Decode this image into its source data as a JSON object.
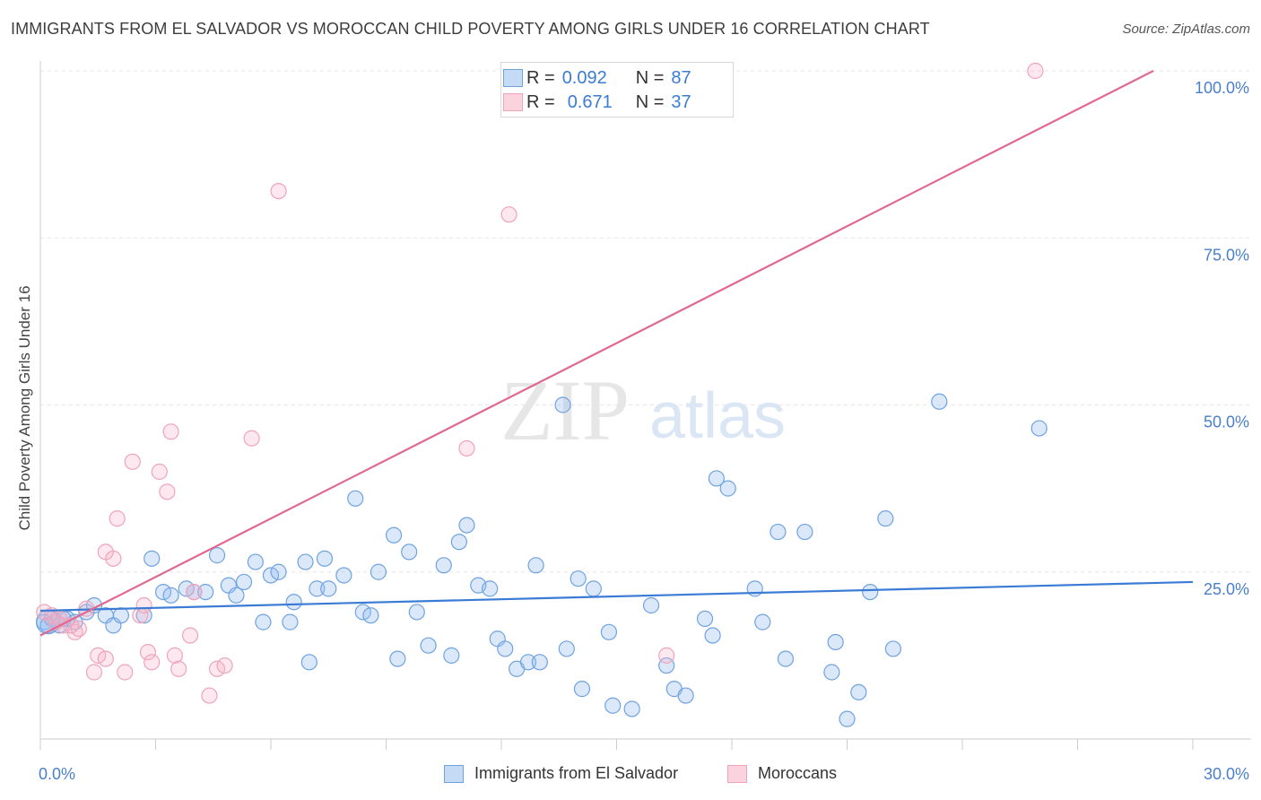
{
  "title": "IMMIGRANTS FROM EL SALVADOR VS MOROCCAN CHILD POVERTY AMONG GIRLS UNDER 16 CORRELATION CHART",
  "source": "Source: ZipAtlas.com",
  "watermark": {
    "zip": "ZIP",
    "atlas": "atlas"
  },
  "colors": {
    "blue": "#6fa3e0",
    "blue_line": "#3a7bd5",
    "pink": "#f0a3bb",
    "pink_line": "#e0698f",
    "axis_text": "#4a7fcc"
  },
  "legend_top": [
    {
      "r_label": "R =",
      "r_value": "0.092",
      "n_label": "N =",
      "n_value": "87"
    },
    {
      "r_label": "R =",
      "r_value": "0.671",
      "n_label": "N =",
      "n_value": "37"
    }
  ],
  "chart_data": {
    "type": "scatter",
    "title": "IMMIGRANTS FROM EL SALVADOR VS MOROCCAN CHILD POVERTY AMONG GIRLS UNDER 16 CORRELATION CHART",
    "xlabel": "",
    "ylabel": "Child Poverty Among Girls Under 16",
    "xlim": [
      0,
      30
    ],
    "ylim": [
      0,
      100
    ],
    "x_tick_labels": [
      "0.0%",
      "30.0%"
    ],
    "y_tick_labels": [
      "25.0%",
      "50.0%",
      "75.0%",
      "100.0%"
    ],
    "y_ticks": [
      25,
      50,
      75,
      100
    ],
    "legend_position": "bottom",
    "series": [
      {
        "name": "Immigrants from El Salvador",
        "color": "#6fa3e0",
        "trend": {
          "x": [
            0,
            30
          ],
          "y": [
            19.2,
            23.5
          ]
        },
        "points": [
          [
            0.1,
            17.5
          ],
          [
            0.3,
            18
          ],
          [
            0.5,
            17
          ],
          [
            0.7,
            18
          ],
          [
            0.9,
            17.5
          ],
          [
            1.2,
            19
          ],
          [
            1.4,
            20
          ],
          [
            1.7,
            18.5
          ],
          [
            1.9,
            17
          ],
          [
            2.1,
            18.5
          ],
          [
            2.7,
            18.5
          ],
          [
            2.9,
            27
          ],
          [
            3.2,
            22
          ],
          [
            3.4,
            21.5
          ],
          [
            3.8,
            22.5
          ],
          [
            4.0,
            22
          ],
          [
            4.3,
            22
          ],
          [
            4.6,
            27.5
          ],
          [
            4.9,
            23
          ],
          [
            5.1,
            21.5
          ],
          [
            5.3,
            23.5
          ],
          [
            5.6,
            26.5
          ],
          [
            5.8,
            17.5
          ],
          [
            6.0,
            24.5
          ],
          [
            6.2,
            25
          ],
          [
            6.5,
            17.5
          ],
          [
            6.6,
            20.5
          ],
          [
            6.9,
            26.5
          ],
          [
            7.0,
            11.5
          ],
          [
            7.2,
            22.5
          ],
          [
            7.4,
            27
          ],
          [
            7.5,
            22.5
          ],
          [
            7.9,
            24.5
          ],
          [
            8.2,
            36
          ],
          [
            8.4,
            19
          ],
          [
            8.6,
            18.5
          ],
          [
            8.8,
            25
          ],
          [
            9.2,
            30.5
          ],
          [
            9.3,
            12
          ],
          [
            9.6,
            28
          ],
          [
            9.8,
            19
          ],
          [
            10.1,
            14
          ],
          [
            10.5,
            26
          ],
          [
            10.7,
            12.5
          ],
          [
            10.9,
            29.5
          ],
          [
            11.1,
            32
          ],
          [
            11.4,
            23
          ],
          [
            11.7,
            22.5
          ],
          [
            11.9,
            15
          ],
          [
            12.1,
            13.5
          ],
          [
            12.4,
            10.5
          ],
          [
            12.7,
            11.5
          ],
          [
            12.9,
            26
          ],
          [
            13.0,
            11.5
          ],
          [
            13.6,
            50
          ],
          [
            13.7,
            13.5
          ],
          [
            14.0,
            24
          ],
          [
            14.1,
            7.5
          ],
          [
            14.4,
            22.5
          ],
          [
            14.8,
            16
          ],
          [
            14.9,
            5
          ],
          [
            15.4,
            4.5
          ],
          [
            15.9,
            20
          ],
          [
            16.3,
            11
          ],
          [
            16.5,
            7.5
          ],
          [
            16.8,
            6.5
          ],
          [
            17.3,
            18
          ],
          [
            17.5,
            15.5
          ],
          [
            17.6,
            39
          ],
          [
            17.9,
            37.5
          ],
          [
            18.6,
            22.5
          ],
          [
            18.8,
            17.5
          ],
          [
            19.2,
            31
          ],
          [
            19.4,
            12
          ],
          [
            19.9,
            31
          ],
          [
            20.6,
            10
          ],
          [
            20.7,
            14.5
          ],
          [
            21.0,
            3
          ],
          [
            21.3,
            7
          ],
          [
            21.6,
            22
          ],
          [
            22.0,
            33
          ],
          [
            22.2,
            13.5
          ],
          [
            23.4,
            50.5
          ],
          [
            26.0,
            46.5
          ],
          [
            0.2,
            17
          ],
          [
            0.4,
            17.5
          ],
          [
            0.6,
            18
          ]
        ]
      },
      {
        "name": "Moroccans",
        "color": "#f0a3bb",
        "trend": {
          "x": [
            0,
            30
          ],
          "y": [
            15.5,
            103
          ]
        },
        "points": [
          [
            0.1,
            19
          ],
          [
            0.3,
            18.5
          ],
          [
            0.6,
            17
          ],
          [
            0.9,
            16
          ],
          [
            1.0,
            16.5
          ],
          [
            1.2,
            19.5
          ],
          [
            1.4,
            10
          ],
          [
            1.5,
            12.5
          ],
          [
            1.7,
            12
          ],
          [
            1.7,
            28
          ],
          [
            1.9,
            27
          ],
          [
            2.0,
            33
          ],
          [
            2.2,
            10
          ],
          [
            2.4,
            41.5
          ],
          [
            2.6,
            18.5
          ],
          [
            2.7,
            20
          ],
          [
            2.8,
            13
          ],
          [
            2.9,
            11.5
          ],
          [
            3.1,
            40
          ],
          [
            3.3,
            37
          ],
          [
            3.4,
            46
          ],
          [
            3.5,
            12.5
          ],
          [
            3.6,
            10.5
          ],
          [
            3.9,
            15.5
          ],
          [
            4.0,
            22
          ],
          [
            4.4,
            6.5
          ],
          [
            4.6,
            10.5
          ],
          [
            4.8,
            11
          ],
          [
            5.5,
            45
          ],
          [
            6.2,
            82
          ],
          [
            11.1,
            43.5
          ],
          [
            12.2,
            78.5
          ],
          [
            16.3,
            12.5
          ],
          [
            25.9,
            100
          ],
          [
            0.4,
            17.5
          ],
          [
            0.5,
            18
          ],
          [
            0.8,
            17
          ]
        ]
      }
    ]
  },
  "bottom_legend": [
    "Immigrants from El Salvador",
    "Moroccans"
  ]
}
